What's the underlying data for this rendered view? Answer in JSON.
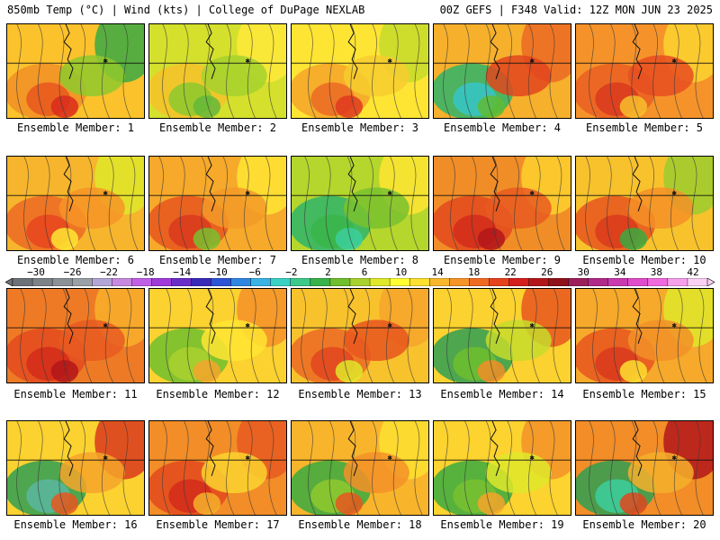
{
  "header": {
    "title": "850mb Temp (°C) | Wind (kts) | College of DuPage NEXLAB",
    "run_info": "00Z GEFS | F348 Valid: 12Z MON JUN 23 2025"
  },
  "colorbar": {
    "ticks": [
      "-30",
      "-26",
      "-22",
      "-18",
      "-14",
      "-10",
      "-6",
      "-2",
      "2",
      "6",
      "10",
      "14",
      "18",
      "22",
      "26",
      "30",
      "34",
      "38",
      "42"
    ],
    "range": [
      -30,
      42
    ],
    "colors": [
      "#6d7178",
      "#7c8288",
      "#8b9196",
      "#9aa0a6",
      "#b3a6d6",
      "#c78ae0",
      "#c060e6",
      "#a03ad8",
      "#6a2ec8",
      "#3a2ab8",
      "#2b55d6",
      "#2f86e0",
      "#39b3e6",
      "#3ad1c4",
      "#3cc98a",
      "#38b24a",
      "#6fbf2e",
      "#a9d12e",
      "#dfe82a",
      "#ffff33",
      "#fde030",
      "#f9b82c",
      "#f69427",
      "#f06a22",
      "#e6421e",
      "#d41f1c",
      "#b3161a",
      "#8f111a",
      "#9c1f5c",
      "#b02a8a",
      "#c93ab0",
      "#e04ccc",
      "#f06ade",
      "#f7a0ec",
      "#fbd0f5"
    ]
  },
  "members": [
    {
      "label": "Ensemble Member: 1",
      "fill": "#fbc22c",
      "blobs": [
        {
          "c": "#f18f26"
        },
        {
          "c": "#e8561f"
        },
        {
          "c": "#d92c1c"
        },
        {
          "c": "#39a944"
        },
        {
          "c": "#8ec92e"
        }
      ]
    },
    {
      "label": "Ensemble Member: 2",
      "fill": "#d4e02c",
      "blobs": [
        {
          "c": "#f6c12c"
        },
        {
          "c": "#8cc92e"
        },
        {
          "c": "#63b83a"
        },
        {
          "c": "#ffe93a"
        },
        {
          "c": "#a5d12e"
        }
      ]
    },
    {
      "label": "Ensemble Member: 3",
      "fill": "#ffe533",
      "blobs": [
        {
          "c": "#f5a52a"
        },
        {
          "c": "#ec6a24"
        },
        {
          "c": "#df3a1e"
        },
        {
          "c": "#c6dc2c"
        },
        {
          "c": "#f7cd2f"
        }
      ]
    },
    {
      "label": "Ensemble Member: 4",
      "fill": "#f6b02c",
      "blobs": [
        {
          "c": "#2fb46a"
        },
        {
          "c": "#36c5c8"
        },
        {
          "c": "#5fbb35"
        },
        {
          "c": "#ec6a24"
        },
        {
          "c": "#e2451f"
        }
      ]
    },
    {
      "label": "Ensemble Member: 5",
      "fill": "#f5932a",
      "blobs": [
        {
          "c": "#ea5f22"
        },
        {
          "c": "#db3a1d"
        },
        {
          "c": "#f7c02c"
        },
        {
          "c": "#fcd32f"
        },
        {
          "c": "#e84d20"
        }
      ]
    },
    {
      "label": "Ensemble Member: 6",
      "fill": "#f6b52c",
      "blobs": [
        {
          "c": "#ec6a24"
        },
        {
          "c": "#e6451f"
        },
        {
          "c": "#ffe733"
        },
        {
          "c": "#dfe82a"
        },
        {
          "c": "#f69427"
        }
      ]
    },
    {
      "label": "Ensemble Member: 7",
      "fill": "#f6a92a",
      "blobs": [
        {
          "c": "#e8561f"
        },
        {
          "c": "#d93a1d"
        },
        {
          "c": "#79c12f"
        },
        {
          "c": "#ffe533"
        },
        {
          "c": "#f39a28"
        }
      ]
    },
    {
      "label": "Ensemble Member: 8",
      "fill": "#b5d62c",
      "blobs": [
        {
          "c": "#2fb46a"
        },
        {
          "c": "#39b54a"
        },
        {
          "c": "#3ccf9c"
        },
        {
          "c": "#ffe533"
        },
        {
          "c": "#79c12f"
        }
      ]
    },
    {
      "label": "Ensemble Member: 9",
      "fill": "#f08d27",
      "blobs": [
        {
          "c": "#e34a1f"
        },
        {
          "c": "#d22b1b"
        },
        {
          "c": "#b3161a"
        },
        {
          "c": "#fdd12f"
        },
        {
          "c": "#e85a21"
        }
      ]
    },
    {
      "label": "Ensemble Member: 10",
      "fill": "#f8c22d",
      "blobs": [
        {
          "c": "#e8561f"
        },
        {
          "c": "#d93a1d"
        },
        {
          "c": "#3aaa3f"
        },
        {
          "c": "#9ccc2e"
        },
        {
          "c": "#f59028"
        }
      ]
    },
    {
      "label": "Ensemble Member: 11",
      "fill": "#ee7a25",
      "blobs": [
        {
          "c": "#e34a1f"
        },
        {
          "c": "#d22b1b"
        },
        {
          "c": "#b3161a"
        },
        {
          "c": "#f8b02b"
        },
        {
          "c": "#e85a21"
        }
      ]
    },
    {
      "label": "Ensemble Member: 12",
      "fill": "#fbd22f",
      "blobs": [
        {
          "c": "#6fbf2e"
        },
        {
          "c": "#a9d12e"
        },
        {
          "c": "#f6a42a"
        },
        {
          "c": "#f59028"
        },
        {
          "c": "#ffe533"
        }
      ]
    },
    {
      "label": "Ensemble Member: 13",
      "fill": "#f8c22d",
      "blobs": [
        {
          "c": "#ec6a24"
        },
        {
          "c": "#e2451f"
        },
        {
          "c": "#dfe82a"
        },
        {
          "c": "#f6a42a"
        },
        {
          "c": "#e8561f"
        }
      ]
    },
    {
      "label": "Ensemble Member: 14",
      "fill": "#fbd22f",
      "blobs": [
        {
          "c": "#2f9f54"
        },
        {
          "c": "#6fbf2e"
        },
        {
          "c": "#f28d27"
        },
        {
          "c": "#e8561f"
        },
        {
          "c": "#c5dc2c"
        }
      ]
    },
    {
      "label": "Ensemble Member: 15",
      "fill": "#f6a92a",
      "blobs": [
        {
          "c": "#e8561f"
        },
        {
          "c": "#d93a1d"
        },
        {
          "c": "#fde030"
        },
        {
          "c": "#dfe82a"
        },
        {
          "c": "#f29028"
        }
      ]
    },
    {
      "label": "Ensemble Member: 16",
      "fill": "#fbd22f",
      "blobs": [
        {
          "c": "#2f9f54"
        },
        {
          "c": "#5bb6a0"
        },
        {
          "c": "#e8561f"
        },
        {
          "c": "#d93a1d"
        },
        {
          "c": "#f6a42a"
        }
      ]
    },
    {
      "label": "Ensemble Member: 17",
      "fill": "#f28d27",
      "blobs": [
        {
          "c": "#e34a1f"
        },
        {
          "c": "#d22b1b"
        },
        {
          "c": "#f6b02c"
        },
        {
          "c": "#e85a21"
        },
        {
          "c": "#fcd32f"
        }
      ]
    },
    {
      "label": "Ensemble Member: 18",
      "fill": "#f8b52c",
      "blobs": [
        {
          "c": "#3aaa3f"
        },
        {
          "c": "#8ec92e"
        },
        {
          "c": "#e8561f"
        },
        {
          "c": "#fde030"
        },
        {
          "c": "#f59028"
        }
      ]
    },
    {
      "label": "Ensemble Member: 19",
      "fill": "#fcd32f",
      "blobs": [
        {
          "c": "#3aaa3f"
        },
        {
          "c": "#79c12f"
        },
        {
          "c": "#f6a42a"
        },
        {
          "c": "#f29028"
        },
        {
          "c": "#dfe82a"
        }
      ]
    },
    {
      "label": "Ensemble Member: 20",
      "fill": "#f28d27",
      "blobs": [
        {
          "c": "#2f9f54"
        },
        {
          "c": "#3ccf9c"
        },
        {
          "c": "#e2451f"
        },
        {
          "c": "#b3161a"
        },
        {
          "c": "#f6b02c"
        }
      ]
    }
  ]
}
